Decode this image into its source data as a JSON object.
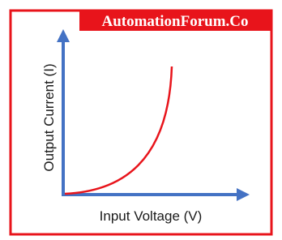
{
  "watermark": "AutomationForum.Co",
  "y_axis_label": "Output Current (I)",
  "x_axis_label": "Input Voltage (V)"
}
